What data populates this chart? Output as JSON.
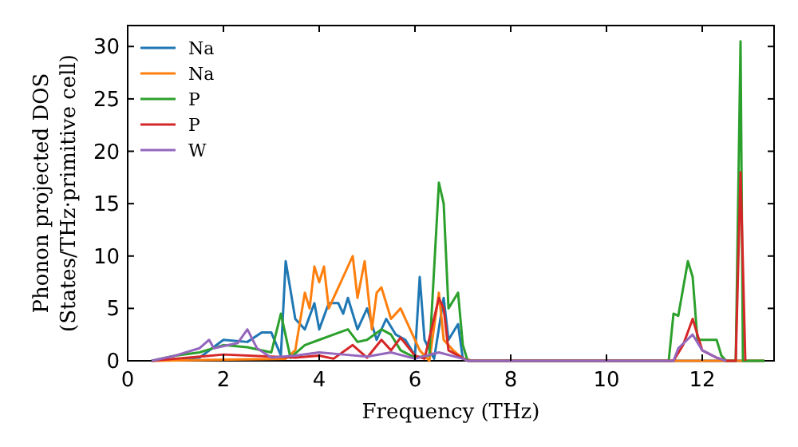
{
  "chart_data": {
    "type": "line",
    "xlabel": "Frequency (THz)",
    "ylabel": "Phonon projected DOS\n(States/THz·primitive cell)",
    "xlim": [
      0,
      13.5
    ],
    "ylim": [
      0,
      32
    ],
    "xticks": [
      0,
      2,
      4,
      6,
      8,
      10,
      12
    ],
    "yticks": [
      0,
      5,
      10,
      15,
      20,
      25,
      30
    ],
    "grid": false,
    "legend": "top left",
    "line_style": "solid",
    "series": [
      {
        "name": "Na",
        "color": "#1f77b4",
        "x": [
          0.5,
          1.5,
          2,
          2.5,
          2.8,
          3,
          3.2,
          3.3,
          3.5,
          3.7,
          3.9,
          4,
          4.2,
          4.4,
          4.5,
          4.6,
          4.8,
          5,
          5.2,
          5.4,
          5.6,
          5.8,
          6,
          6.1,
          6.2,
          6.4,
          6.6,
          6.7,
          6.9,
          7,
          7.2,
          13.3
        ],
        "values": [
          0,
          0.3,
          2,
          1.8,
          2.7,
          2.7,
          0.5,
          9.5,
          4,
          3,
          5.5,
          3,
          5.5,
          5.5,
          4.5,
          6,
          3,
          5,
          2,
          4,
          2.5,
          2,
          0.5,
          8,
          2,
          0.2,
          6,
          2,
          3.5,
          0.2,
          0,
          0
        ]
      },
      {
        "name": "Na",
        "color": "#ff7f0e",
        "x": [
          0.5,
          3.3,
          3.5,
          3.7,
          3.8,
          3.9,
          4,
          4.1,
          4.2,
          4.4,
          4.5,
          4.7,
          4.8,
          4.95,
          5.1,
          5.2,
          5.3,
          5.5,
          5.7,
          5.9,
          6.1,
          6.3,
          6.5,
          6.6,
          6.8,
          7,
          7.2,
          13.3
        ],
        "values": [
          0,
          0.2,
          1,
          6.5,
          5,
          9,
          7.5,
          9,
          5,
          7,
          8,
          10,
          6,
          9.5,
          3,
          6.5,
          7,
          4,
          5,
          3,
          1,
          0,
          6.5,
          2,
          1,
          0.2,
          0,
          0
        ]
      },
      {
        "name": "P",
        "color": "#2ca02c",
        "x": [
          0.5,
          1,
          1.5,
          2,
          2.5,
          3,
          3.2,
          3.4,
          3.7,
          4,
          4.3,
          4.6,
          4.8,
          5,
          5.3,
          5.5,
          5.7,
          6,
          6.3,
          6.5,
          6.6,
          6.7,
          6.9,
          7,
          7.1,
          11.3,
          11.4,
          11.5,
          11.7,
          11.8,
          11.9,
          12.3,
          12.4,
          12.5,
          12.7,
          12.8,
          12.85,
          13.3
        ],
        "values": [
          0,
          0.5,
          0.8,
          1.5,
          1.3,
          0.8,
          4.5,
          0.3,
          1.5,
          2,
          2.5,
          3,
          1.8,
          2,
          3,
          2.5,
          1,
          0.3,
          0.5,
          17,
          15,
          5,
          6.5,
          1.5,
          0,
          0,
          4.5,
          4.3,
          9.5,
          8,
          2,
          2,
          0.5,
          0,
          0,
          30.5,
          0,
          0
        ]
      },
      {
        "name": "P",
        "color": "#d62728",
        "x": [
          0.5,
          1,
          2,
          3,
          3.5,
          4,
          4.3,
          4.7,
          5,
          5.3,
          5.5,
          5.7,
          6,
          6.2,
          6.5,
          6.6,
          6.7,
          6.9,
          7.1,
          11.4,
          11.6,
          11.8,
          12,
          12.3,
          12.5,
          12.7,
          12.8,
          12.9
        ],
        "values": [
          0,
          0.2,
          0.6,
          0.4,
          0.3,
          0.5,
          0.2,
          1.5,
          0.3,
          2,
          1,
          2.2,
          0.5,
          0.2,
          6,
          5,
          1,
          0.5,
          0,
          0,
          1.5,
          4,
          1,
          0.3,
          0,
          0,
          18,
          0
        ]
      },
      {
        "name": "W",
        "color": "#9467bd",
        "x": [
          0.5,
          1,
          1.5,
          1.7,
          1.8,
          2.3,
          2.5,
          2.7,
          3,
          3.5,
          4,
          4.5,
          5,
          5.5,
          6,
          6.5,
          7,
          7.1,
          11.4,
          11.5,
          11.8,
          12,
          12.3,
          12.5
        ],
        "values": [
          0,
          0.5,
          1.2,
          2,
          1.2,
          1.7,
          3,
          1.2,
          0.3,
          0.5,
          0.8,
          0.6,
          0.4,
          0.8,
          0.2,
          0.8,
          0.2,
          0,
          0,
          1.2,
          2.5,
          1,
          0.3,
          0
        ]
      }
    ]
  }
}
